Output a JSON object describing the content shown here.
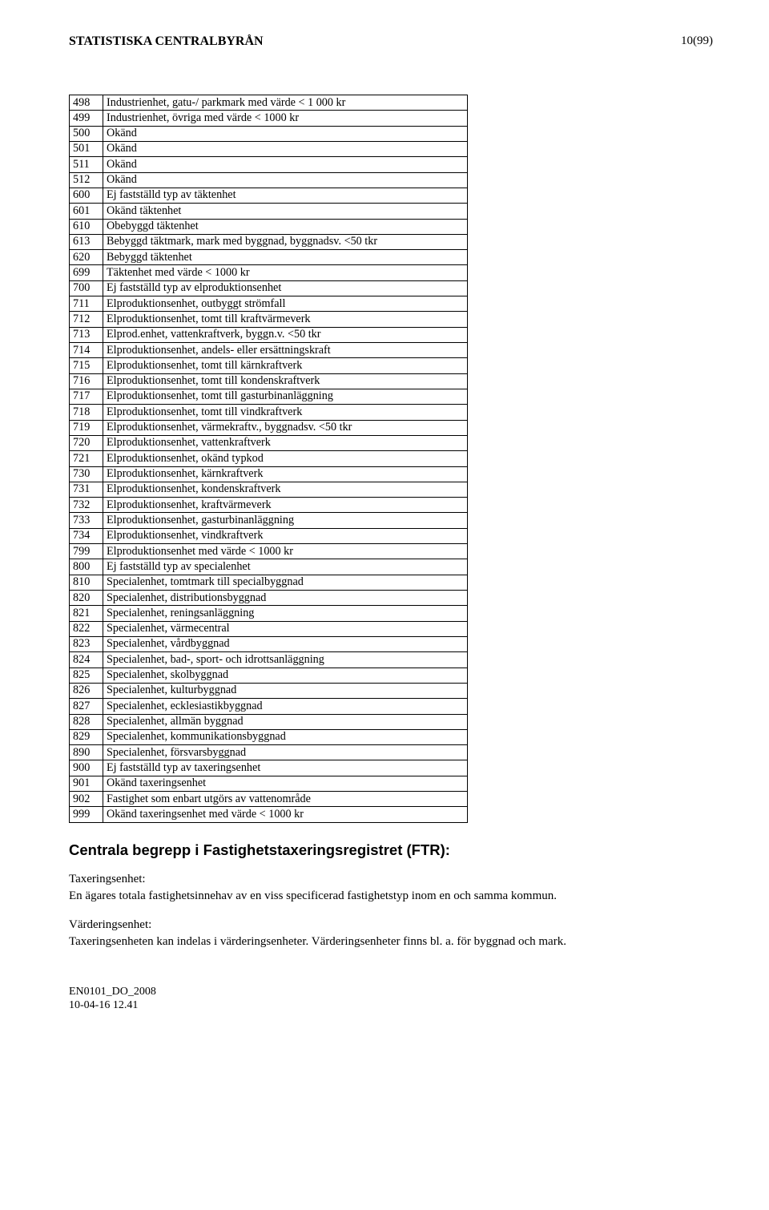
{
  "header": {
    "org": "STATISTISKA CENTRALBYRÅN",
    "page": "10(99)"
  },
  "table": {
    "rows": [
      [
        "498",
        "Industrienhet, gatu-/ parkmark med värde < 1 000 kr"
      ],
      [
        "499",
        "Industrienhet, övriga med värde < 1000 kr"
      ],
      [
        "500",
        "Okänd"
      ],
      [
        "501",
        "Okänd"
      ],
      [
        "511",
        "Okänd"
      ],
      [
        "512",
        "Okänd"
      ],
      [
        "600",
        "Ej fastställd typ av täktenhet"
      ],
      [
        "601",
        "Okänd täktenhet"
      ],
      [
        "610",
        "Obebyggd täktenhet"
      ],
      [
        "613",
        "Bebyggd täktmark, mark med byggnad, byggnadsv. <50 tkr"
      ],
      [
        "620",
        "Bebyggd täktenhet"
      ],
      [
        "699",
        "Täktenhet med värde < 1000 kr"
      ],
      [
        "700",
        "Ej fastställd typ av elproduktionsenhet"
      ],
      [
        "711",
        "Elproduktionsenhet, outbyggt strömfall"
      ],
      [
        "712",
        "Elproduktionsenhet, tomt till kraftvärmeverk"
      ],
      [
        "713",
        "Elprod.enhet, vattenkraftverk, byggn.v. <50 tkr"
      ],
      [
        "714",
        "Elproduktionsenhet, andels- eller ersättningskraft"
      ],
      [
        "715",
        "Elproduktionsenhet, tomt till kärnkraftverk"
      ],
      [
        "716",
        "Elproduktionsenhet, tomt till kondenskraftverk"
      ],
      [
        "717",
        "Elproduktionsenhet, tomt till gasturbinanläggning"
      ],
      [
        "718",
        "Elproduktionsenhet, tomt till vindkraftverk"
      ],
      [
        "719",
        "Elproduktionsenhet, värmekraftv., byggnadsv. <50 tkr"
      ],
      [
        "720",
        "Elproduktionsenhet, vattenkraftverk"
      ],
      [
        "721",
        "Elproduktionsenhet, okänd typkod"
      ],
      [
        "730",
        "Elproduktionsenhet, kärnkraftverk"
      ],
      [
        "731",
        "Elproduktionsenhet, kondenskraftverk"
      ],
      [
        "732",
        "Elproduktionsenhet, kraftvärmeverk"
      ],
      [
        "733",
        "Elproduktionsenhet, gasturbinanläggning"
      ],
      [
        "734",
        "Elproduktionsenhet, vindkraftverk"
      ],
      [
        "799",
        "Elproduktionsenhet med värde < 1000 kr"
      ],
      [
        "800",
        "Ej fastställd typ av specialenhet"
      ],
      [
        "810",
        "Specialenhet, tomtmark till specialbyggnad"
      ],
      [
        "820",
        "Specialenhet, distributionsbyggnad"
      ],
      [
        "821",
        "Specialenhet, reningsanläggning"
      ],
      [
        "822",
        "Specialenhet, värmecentral"
      ],
      [
        "823",
        "Specialenhet, vårdbyggnad"
      ],
      [
        "824",
        "Specialenhet, bad-, sport- och idrottsanläggning"
      ],
      [
        "825",
        "Specialenhet, skolbyggnad"
      ],
      [
        "826",
        "Specialenhet, kulturbyggnad"
      ],
      [
        "827",
        "Specialenhet, ecklesiastikbyggnad"
      ],
      [
        "828",
        "Specialenhet, allmän byggnad"
      ],
      [
        "829",
        "Specialenhet, kommunikationsbyggnad"
      ],
      [
        "890",
        "Specialenhet, försvarsbyggnad"
      ],
      [
        "900",
        "Ej fastställd typ av taxeringsenhet"
      ],
      [
        "901",
        "Okänd taxeringsenhet"
      ],
      [
        "902",
        "Fastighet som enbart utgörs av vattenområde"
      ],
      [
        "999",
        "Okänd taxeringsenhet med värde < 1000 kr"
      ]
    ]
  },
  "section": {
    "heading": "Centrala begrepp i Fastighetstaxeringsregistret (FTR):",
    "block1_title": "Taxeringsenhet:",
    "block1_body": "En ägares totala fastighetsinnehav av en viss specificerad fastighetstyp inom en och samma kommun.",
    "block2_title": "Värderingsenhet:",
    "block2_body": "Taxeringsenheten kan indelas i värderingsenheter. Värderingsenheter finns bl. a. för byggnad och mark."
  },
  "footer": {
    "doc_id": "EN0101_DO_2008",
    "timestamp": "10-04-16 12.41"
  },
  "style": {
    "background_color": "#ffffff",
    "text_color": "#000000",
    "table_border_color": "#000000",
    "body_font": "Times New Roman",
    "heading_font": "Arial",
    "body_fontsize": 14.5,
    "heading_fontsize": 18.5,
    "table_width_pct": 62
  }
}
